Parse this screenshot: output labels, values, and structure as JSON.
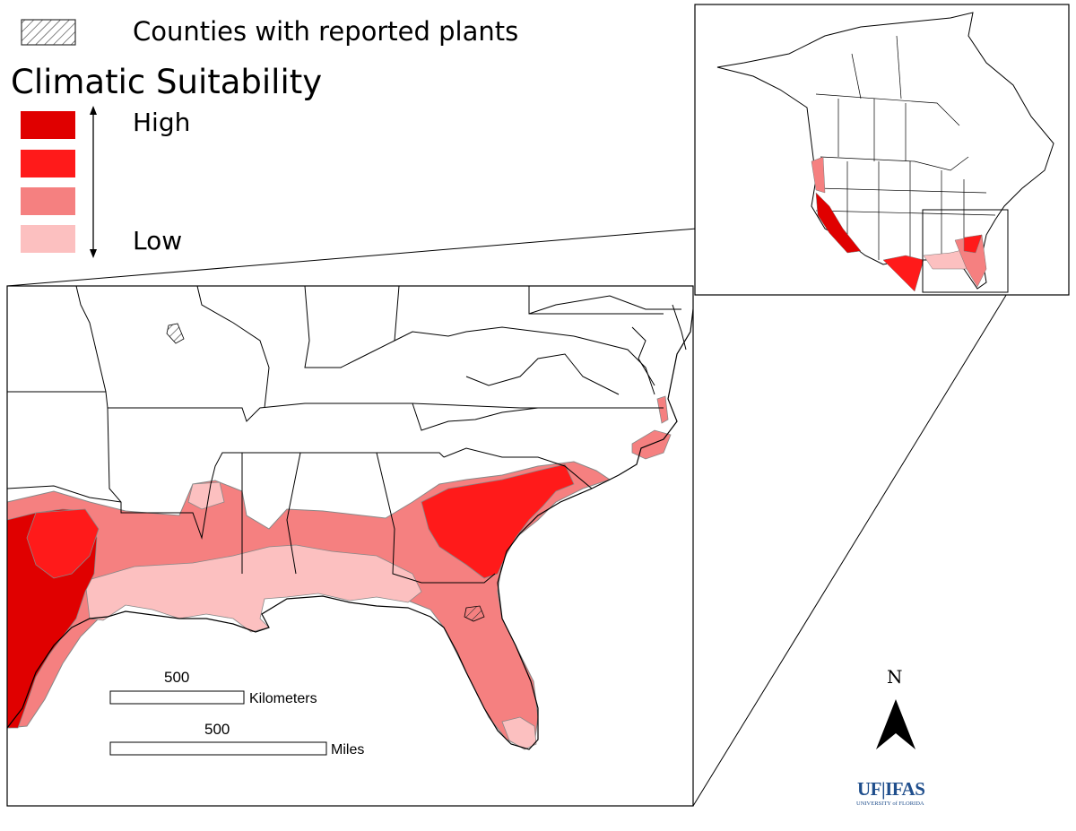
{
  "legend": {
    "hatch_label": "Counties with reported plants",
    "title": "Climatic Suitability",
    "high_label": "High",
    "low_label": "Low",
    "colors": [
      "#e00000",
      "#ff1a1a",
      "#f58080",
      "#fcc0c0"
    ]
  },
  "scale_bar": {
    "km_value": "500",
    "km_unit": "Kilometers",
    "mi_value": "500",
    "mi_unit": "Miles"
  },
  "north_arrow": {
    "label": "N",
    "icon": "north-arrow-icon"
  },
  "logo": {
    "main": "UF|IFAS",
    "sub": "UNIVERSITY of FLORIDA"
  }
}
